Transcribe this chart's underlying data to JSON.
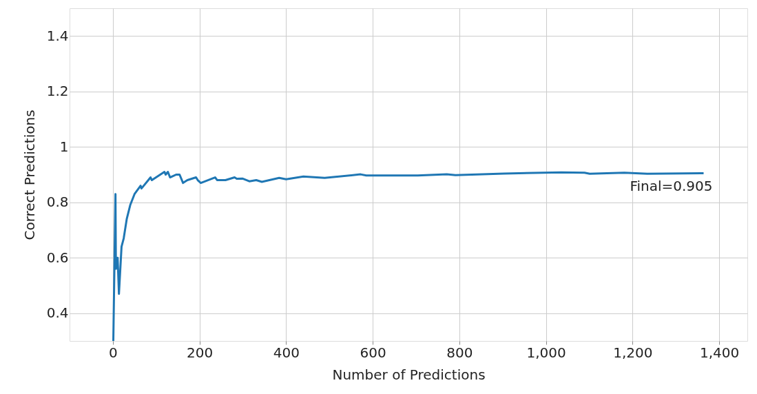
{
  "chart_data": {
    "type": "line",
    "xlabel": "Number of Predictions",
    "ylabel": "Correct Predictions",
    "x": [
      1,
      6,
      7,
      11,
      14,
      20,
      25,
      32,
      40,
      50,
      64,
      66,
      87,
      90,
      119,
      122,
      127,
      132,
      146,
      148,
      154,
      162,
      172,
      192,
      196,
      203,
      236,
      241,
      260,
      281,
      286,
      299,
      315,
      331,
      344,
      384,
      400,
      440,
      489,
      572,
      585,
      704,
      771,
      791,
      903,
      1035,
      1089,
      1101,
      1181,
      1234,
      1364
    ],
    "series": [
      {
        "color": "#1f77b4",
        "values": [
          0.3,
          0.83,
          0.56,
          0.6,
          0.47,
          0.64,
          0.67,
          0.74,
          0.79,
          0.83,
          0.86,
          0.85,
          0.89,
          0.88,
          0.91,
          0.9,
          0.91,
          0.89,
          0.9,
          0.9,
          0.9,
          0.87,
          0.88,
          0.89,
          0.88,
          0.87,
          0.89,
          0.88,
          0.88,
          0.89,
          0.885,
          0.886,
          0.876,
          0.88,
          0.874,
          0.888,
          0.883,
          0.893,
          0.888,
          0.901,
          0.897,
          0.897,
          0.901,
          0.898,
          0.904,
          0.908,
          0.907,
          0.903,
          0.907,
          0.903,
          0.905
        ]
      }
    ],
    "annotations": [
      {
        "text": "Final=0.905",
        "x": 1364,
        "y": 0.905
      }
    ],
    "xlim": [
      -100,
      1465
    ],
    "ylim": [
      0.3,
      1.5
    ],
    "xticks": [
      0,
      200,
      400,
      600,
      800,
      {
        "value": 1000,
        "label": "1,000"
      },
      {
        "value": 1200,
        "label": "1,200"
      },
      {
        "value": 1400,
        "label": "1,400"
      }
    ],
    "yticks": [
      0.4,
      0.6,
      0.8,
      1,
      1.2,
      1.4
    ],
    "grid": true,
    "marker": "none",
    "line_style": "solid"
  }
}
